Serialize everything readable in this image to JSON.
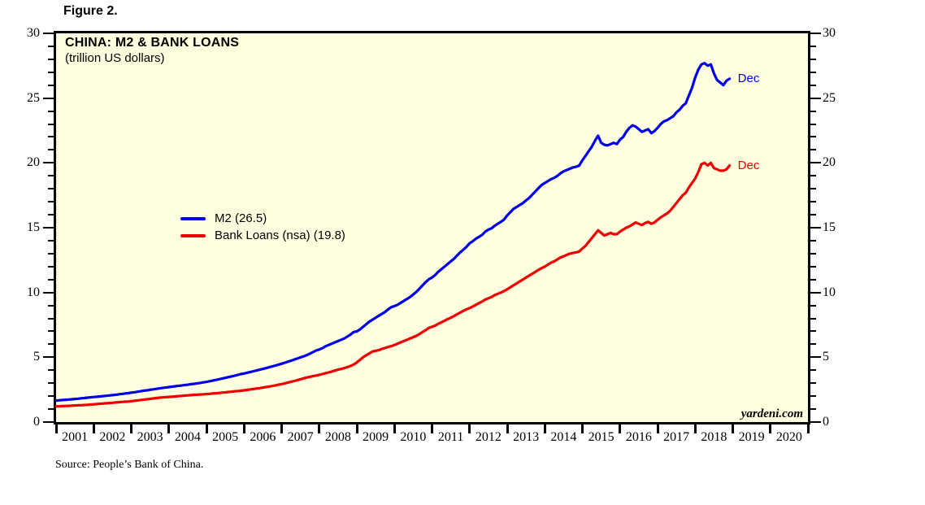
{
  "figure_label": "Figure 2.",
  "source_note": "Source: People’s Bank of China.",
  "chart_data": {
    "type": "line",
    "title": "CHINA: M2 & BANK LOANS",
    "subtitle": "(trillion US dollars)",
    "watermark": "yardeni.com",
    "background_color": "#FFFFE0",
    "grid": false,
    "legend_position": "middle-left",
    "ylim": [
      0,
      30
    ],
    "y_major_ticks": [
      "0",
      "5",
      "10",
      "15",
      "20",
      "25",
      "30"
    ],
    "y_minor_step": 1,
    "x_years": [
      "2001",
      "2002",
      "2003",
      "2004",
      "2005",
      "2006",
      "2007",
      "2008",
      "2009",
      "2010",
      "2011",
      "2012",
      "2013",
      "2014",
      "2015",
      "2016",
      "2017",
      "2018",
      "2019",
      "2020"
    ],
    "frequency": "monthly",
    "data_start": "Jan 2001",
    "data_end": "Dec 2018",
    "series": [
      {
        "name": "M2 (26.5)",
        "end_label": "Dec",
        "last_value": 26.5,
        "color": "#0000E8",
        "values": [
          1.66,
          1.68,
          1.7,
          1.72,
          1.74,
          1.76,
          1.78,
          1.8,
          1.83,
          1.85,
          1.88,
          1.91,
          1.93,
          1.95,
          1.98,
          2.0,
          2.03,
          2.05,
          2.08,
          2.11,
          2.14,
          2.17,
          2.2,
          2.23,
          2.27,
          2.3,
          2.34,
          2.38,
          2.42,
          2.45,
          2.49,
          2.52,
          2.56,
          2.6,
          2.63,
          2.67,
          2.7,
          2.73,
          2.76,
          2.79,
          2.82,
          2.85,
          2.88,
          2.92,
          2.95,
          2.99,
          3.02,
          3.06,
          3.1,
          3.15,
          3.2,
          3.25,
          3.3,
          3.36,
          3.41,
          3.47,
          3.52,
          3.58,
          3.64,
          3.7,
          3.75,
          3.81,
          3.86,
          3.92,
          3.98,
          4.04,
          4.1,
          4.16,
          4.23,
          4.29,
          4.36,
          4.43,
          4.5,
          4.58,
          4.66,
          4.74,
          4.82,
          4.9,
          4.99,
          5.07,
          5.16,
          5.28,
          5.4,
          5.52,
          5.6,
          5.7,
          5.85,
          5.95,
          6.05,
          6.15,
          6.25,
          6.35,
          6.45,
          6.6,
          6.75,
          6.95,
          7.0,
          7.15,
          7.35,
          7.55,
          7.75,
          7.9,
          8.05,
          8.2,
          8.35,
          8.5,
          8.7,
          8.87,
          8.95,
          9.05,
          9.2,
          9.35,
          9.5,
          9.65,
          9.85,
          10.05,
          10.3,
          10.55,
          10.8,
          11.02,
          11.15,
          11.35,
          11.6,
          11.8,
          12.0,
          12.2,
          12.4,
          12.6,
          12.85,
          13.1,
          13.3,
          13.52,
          13.8,
          13.95,
          14.15,
          14.3,
          14.45,
          14.7,
          14.85,
          14.95,
          15.15,
          15.3,
          15.45,
          15.63,
          15.95,
          16.2,
          16.45,
          16.6,
          16.75,
          16.9,
          17.1,
          17.3,
          17.55,
          17.8,
          18.05,
          18.3,
          18.45,
          18.6,
          18.75,
          18.85,
          19.0,
          19.2,
          19.35,
          19.45,
          19.55,
          19.65,
          19.7,
          19.8,
          20.2,
          20.55,
          20.9,
          21.25,
          21.7,
          22.1,
          21.55,
          21.4,
          21.35,
          21.45,
          21.55,
          21.45,
          21.8,
          22.0,
          22.4,
          22.7,
          22.9,
          22.8,
          22.6,
          22.4,
          22.5,
          22.6,
          22.3,
          22.45,
          22.7,
          23.0,
          23.2,
          23.3,
          23.45,
          23.6,
          23.9,
          24.1,
          24.4,
          24.6,
          25.2,
          25.8,
          26.6,
          27.2,
          27.6,
          27.7,
          27.5,
          27.6,
          26.9,
          26.4,
          26.2,
          26.0,
          26.35,
          26.5
        ]
      },
      {
        "name": "Bank Loans (nsa) (19.8)",
        "end_label": "Dec",
        "last_value": 19.8,
        "color": "#EE0000",
        "values": [
          1.21,
          1.22,
          1.23,
          1.24,
          1.25,
          1.26,
          1.28,
          1.29,
          1.3,
          1.32,
          1.33,
          1.35,
          1.37,
          1.39,
          1.41,
          1.43,
          1.45,
          1.47,
          1.49,
          1.51,
          1.53,
          1.55,
          1.57,
          1.58,
          1.61,
          1.64,
          1.67,
          1.7,
          1.73,
          1.76,
          1.79,
          1.82,
          1.85,
          1.88,
          1.9,
          1.92,
          1.94,
          1.96,
          1.98,
          2.0,
          2.02,
          2.04,
          2.06,
          2.08,
          2.1,
          2.11,
          2.13,
          2.14,
          2.16,
          2.18,
          2.2,
          2.22,
          2.25,
          2.27,
          2.29,
          2.32,
          2.34,
          2.37,
          2.39,
          2.42,
          2.45,
          2.48,
          2.52,
          2.55,
          2.59,
          2.62,
          2.66,
          2.7,
          2.74,
          2.78,
          2.83,
          2.88,
          2.93,
          2.99,
          3.05,
          3.11,
          3.17,
          3.24,
          3.3,
          3.37,
          3.44,
          3.49,
          3.54,
          3.59,
          3.64,
          3.7,
          3.77,
          3.83,
          3.9,
          3.97,
          4.04,
          4.1,
          4.16,
          4.24,
          4.33,
          4.44,
          4.6,
          4.8,
          5.0,
          5.15,
          5.3,
          5.45,
          5.5,
          5.55,
          5.65,
          5.72,
          5.79,
          5.86,
          5.95,
          6.05,
          6.15,
          6.25,
          6.35,
          6.45,
          6.55,
          6.65,
          6.8,
          6.95,
          7.1,
          7.27,
          7.35,
          7.45,
          7.58,
          7.7,
          7.82,
          7.95,
          8.05,
          8.18,
          8.32,
          8.45,
          8.58,
          8.7,
          8.8,
          8.92,
          9.05,
          9.18,
          9.3,
          9.45,
          9.55,
          9.65,
          9.8,
          9.9,
          10.0,
          10.11,
          10.25,
          10.4,
          10.55,
          10.7,
          10.85,
          11.0,
          11.15,
          11.3,
          11.45,
          11.6,
          11.75,
          11.88,
          12.0,
          12.15,
          12.3,
          12.4,
          12.55,
          12.7,
          12.8,
          12.9,
          13.0,
          13.05,
          13.1,
          13.16,
          13.4,
          13.6,
          13.9,
          14.2,
          14.5,
          14.8,
          14.6,
          14.4,
          14.5,
          14.6,
          14.5,
          14.5,
          14.7,
          14.85,
          15.0,
          15.1,
          15.25,
          15.4,
          15.3,
          15.2,
          15.35,
          15.45,
          15.3,
          15.4,
          15.6,
          15.8,
          15.95,
          16.1,
          16.3,
          16.6,
          16.9,
          17.2,
          17.5,
          17.7,
          18.1,
          18.45,
          18.8,
          19.3,
          19.9,
          20.0,
          19.8,
          20.0,
          19.6,
          19.5,
          19.4,
          19.4,
          19.5,
          19.8
        ]
      }
    ]
  }
}
